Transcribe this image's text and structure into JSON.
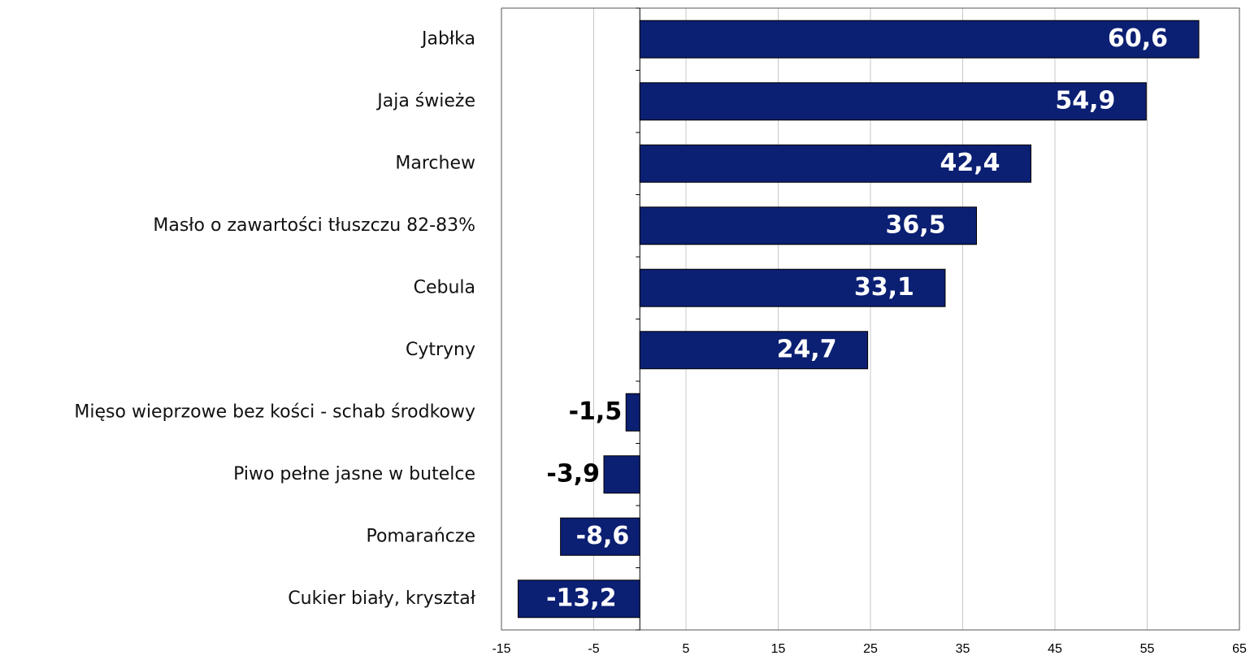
{
  "chart_data": {
    "type": "barh",
    "categories": [
      "Jabłka",
      "Jaja świeże",
      "Marchew",
      "Masło o zawartości tłuszczu 82-83%",
      "Cebula",
      "Cytryny",
      "Mięso wieprzowe bez kości - schab środkowy",
      "Piwo pełne jasne w butelce",
      "Pomarańcze",
      "Cukier biały, kryształ"
    ],
    "values": [
      60.6,
      54.9,
      42.4,
      36.5,
      33.1,
      24.7,
      -1.5,
      -3.9,
      -8.6,
      -13.2
    ],
    "value_labels": [
      "60,6",
      "54,9",
      "42,4",
      "36,5",
      "33,1",
      "24,7",
      "-1,5",
      "-3,9",
      "-8,6",
      "-13,2"
    ],
    "color": "#0b1f73",
    "xlim": [
      -15,
      65
    ],
    "xticks": [
      -15,
      -5,
      5,
      15,
      25,
      35,
      45,
      55,
      65
    ],
    "grid": true
  }
}
